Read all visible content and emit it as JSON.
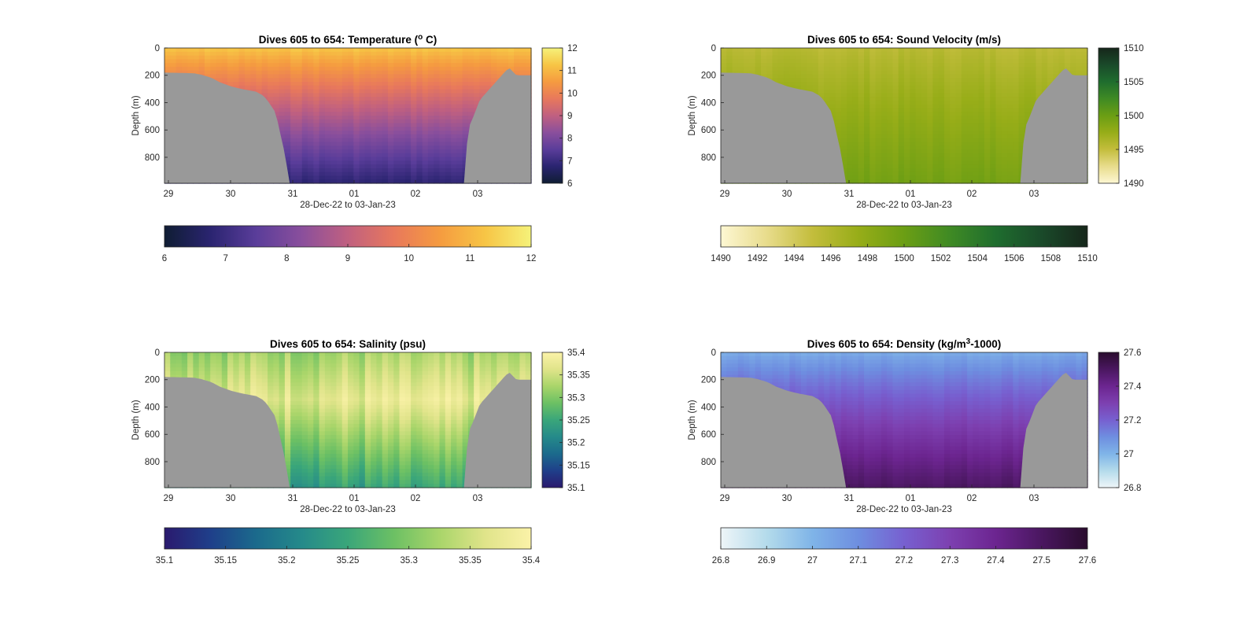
{
  "chart_data": [
    {
      "type": "heatmap",
      "title": "Dives 605 to 654: Temperature (",
      "title_sup": "o",
      "title_end": " C)",
      "xlabel": "28-Dec-22 to 03-Jan-23",
      "ylabel": "Depth (m)",
      "x_ticks": [
        "29",
        "30",
        "31",
        "01",
        "02",
        "03"
      ],
      "y_ticks": [
        "0",
        "200",
        "400",
        "600",
        "800"
      ],
      "ylim": [
        0,
        990
      ],
      "colorbar_ticks": [
        "6",
        "7",
        "8",
        "9",
        "10",
        "11",
        "12"
      ],
      "clim": [
        6,
        12
      ],
      "colormap": [
        "#0f1d33",
        "#2a2470",
        "#5a3d9a",
        "#8a4f9c",
        "#c06080",
        "#e8785c",
        "#f59b40",
        "#f7c545",
        "#f5f27a"
      ],
      "surface_value": 11.3,
      "bottom_value": 6.8
    },
    {
      "type": "heatmap",
      "title": "Dives 605 to 654: Sound Velocity (m/s)",
      "xlabel": "28-Dec-22 to 03-Jan-23",
      "ylabel": "Depth (m)",
      "x_ticks": [
        "29",
        "30",
        "31",
        "01",
        "02",
        "03"
      ],
      "y_ticks": [
        "0",
        "200",
        "400",
        "600",
        "800"
      ],
      "ylim": [
        0,
        990
      ],
      "colorbar_ticks": [
        "1490",
        "1495",
        "1500",
        "1505",
        "1510"
      ],
      "colorbar_ticks_horizontal": [
        "1490",
        "1492",
        "1494",
        "1496",
        "1498",
        "1500",
        "1502",
        "1504",
        "1506",
        "1508",
        "1510"
      ],
      "clim": [
        1490,
        1510
      ],
      "colormap": [
        "#fdf7d3",
        "#e8dc8c",
        "#c3bd3c",
        "#97ad18",
        "#6b9e14",
        "#3f8a24",
        "#1f6d2e",
        "#1a4a2a",
        "#16261a"
      ],
      "surface_value": 1495.5,
      "bottom_value": 1499.5
    },
    {
      "type": "heatmap",
      "title": "Dives 605 to 654: Salinity (psu)",
      "xlabel": "28-Dec-22 to 03-Jan-23",
      "ylabel": "Depth (m)",
      "x_ticks": [
        "29",
        "30",
        "31",
        "01",
        "02",
        "03"
      ],
      "y_ticks": [
        "0",
        "200",
        "400",
        "600",
        "800"
      ],
      "ylim": [
        0,
        990
      ],
      "colorbar_ticks": [
        "35.1",
        "35.15",
        "35.2",
        "35.25",
        "35.3",
        "35.35",
        "35.4"
      ],
      "clim": [
        35.1,
        35.4
      ],
      "colormap": [
        "#2a1a6e",
        "#1f3f8a",
        "#1b6a8c",
        "#258a8a",
        "#3aa67a",
        "#6cc064",
        "#a9d56a",
        "#e0e48a",
        "#fbf2a8"
      ],
      "surface_value": 35.32,
      "mid_value": 35.37,
      "bottom_value": 35.24
    },
    {
      "type": "heatmap",
      "title": "Dives 605 to 654: Density (kg/m",
      "title_sup": "3",
      "title_end": "-1000)",
      "xlabel": "28-Dec-22 to 03-Jan-23",
      "ylabel": "Depth (m)",
      "x_ticks": [
        "29",
        "30",
        "31",
        "01",
        "02",
        "03"
      ],
      "y_ticks": [
        "0",
        "200",
        "400",
        "600",
        "800"
      ],
      "ylim": [
        0,
        990
      ],
      "colorbar_ticks": [
        "26.8",
        "27",
        "27.2",
        "27.4",
        "27.6"
      ],
      "colorbar_ticks_horizontal": [
        "26.8",
        "26.9",
        "27",
        "27.1",
        "27.2",
        "27.3",
        "27.4",
        "27.5",
        "27.6"
      ],
      "clim": [
        26.8,
        27.6
      ],
      "colormap": [
        "#eef5f8",
        "#b4dbeb",
        "#7fb4e8",
        "#6e8ee0",
        "#7760d0",
        "#7d40b0",
        "#6c2590",
        "#4a1760",
        "#2a0c2e"
      ],
      "surface_value": 27.02,
      "bottom_value": 27.5
    }
  ]
}
